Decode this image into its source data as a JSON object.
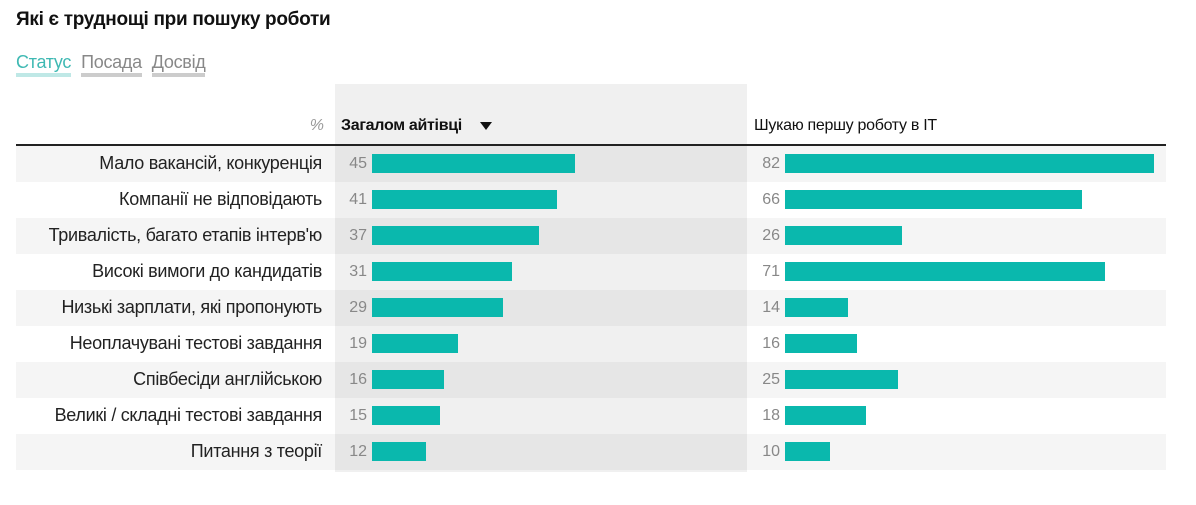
{
  "title": "Які є труднощі при пошуку роботи",
  "tabs": [
    {
      "label": "Статус",
      "active": true
    },
    {
      "label": "Посада",
      "active": false
    },
    {
      "label": "Досвід",
      "active": false
    }
  ],
  "colors": {
    "bar": "#0ab8ad",
    "accent": "#3fb9b3"
  },
  "chart_data": {
    "type": "bar",
    "unit_label": "%",
    "sort_indicator": "sort-desc-icon",
    "categories": [
      "Мало вакансій, конкуренція",
      "Компанії не відповідають",
      "Тривалість, багато етапів інтерв'ю",
      "Високі вимоги до кандидатів",
      "Низькі зарплати, які пропонують",
      "Неоплачувані тестові завдання",
      "Співбесіди англійською",
      "Великі / складні тестові завдання",
      "Питання з теорії"
    ],
    "series": [
      {
        "name": "Загалом айтівці",
        "values": [
          45,
          41,
          37,
          31,
          29,
          19,
          16,
          15,
          12
        ]
      },
      {
        "name": "Шукаю першу роботу в IT",
        "values": [
          82,
          66,
          26,
          71,
          14,
          16,
          25,
          18,
          10
        ]
      }
    ]
  }
}
